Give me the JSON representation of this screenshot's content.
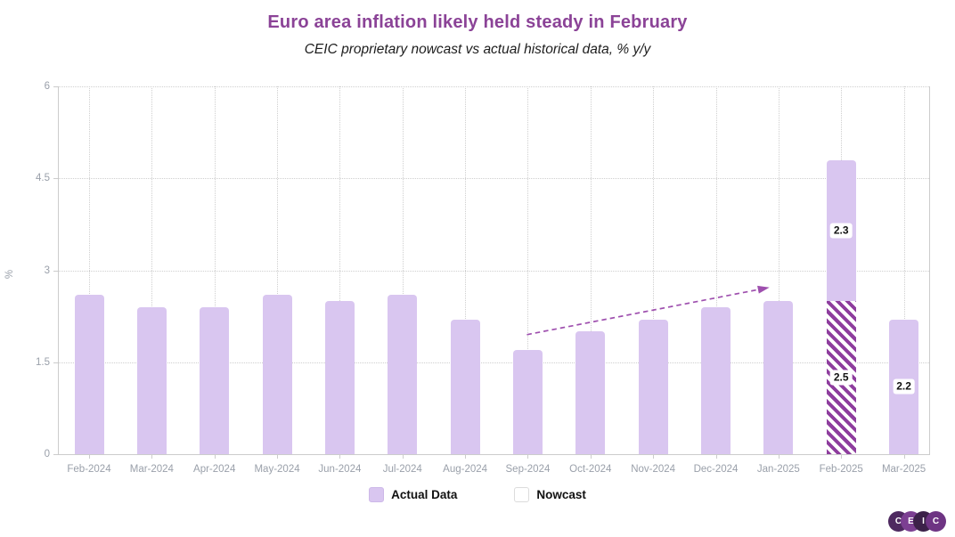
{
  "chart_data": {
    "type": "bar",
    "stacked": true,
    "title": "Euro area inflation likely held steady in February",
    "subtitle": "CEIC proprietary nowcast vs actual historical data, % y/y",
    "ylabel": "%",
    "ylim": [
      0,
      6
    ],
    "yticks": [
      0,
      1.5,
      3,
      4.5,
      6
    ],
    "grid": "dotted",
    "legend_position": "bottom",
    "categories": [
      "Feb-2024",
      "Mar-2024",
      "Apr-2024",
      "May-2024",
      "Jun-2024",
      "Jul-2024",
      "Aug-2024",
      "Sep-2024",
      "Oct-2024",
      "Nov-2024",
      "Dec-2024",
      "Jan-2025",
      "Feb-2025",
      "Mar-2025"
    ],
    "series": [
      {
        "name": "Nowcast",
        "style": "hatched",
        "stack_position": "bottom",
        "values": [
          0,
          0,
          0,
          0,
          0,
          0,
          0,
          0,
          0,
          0,
          0,
          0,
          2.5,
          0
        ]
      },
      {
        "name": "Actual Data",
        "style": "solid",
        "stack_position": "top",
        "values": [
          2.6,
          2.4,
          2.4,
          2.6,
          2.5,
          2.6,
          2.2,
          1.7,
          2.0,
          2.2,
          2.4,
          2.5,
          2.3,
          2.2
        ]
      }
    ],
    "value_labels": [
      {
        "series": "Nowcast",
        "category": "Feb-2025",
        "text": "2.5"
      },
      {
        "series": "Actual Data",
        "category": "Feb-2025",
        "text": "2.3"
      },
      {
        "series": "Actual Data",
        "category": "Mar-2025",
        "text": "2.2"
      }
    ],
    "trend_arrow": {
      "from_category_index": 7.0,
      "from_value": 1.95,
      "to_category_index": 10.87,
      "to_value": 2.72
    }
  },
  "legend": [
    {
      "label": "Actual Data",
      "swatch": "solid"
    },
    {
      "label": "Nowcast",
      "swatch": "outline"
    }
  ],
  "colors": {
    "title": "#8b4397",
    "bar_fill": "#d9c6f0",
    "hatch_stripe": "#8e3d9e",
    "arrow": "#9e4fae",
    "axis_line": "#cccccc",
    "grid_line": "#cfcfcf",
    "tick_label": "#9aa0aa"
  },
  "logo": {
    "letters": [
      "C",
      "E",
      "I",
      "C"
    ],
    "circle_colors": [
      "#4e2960",
      "#7c3f92",
      "#3c2149",
      "#6e3483"
    ]
  }
}
